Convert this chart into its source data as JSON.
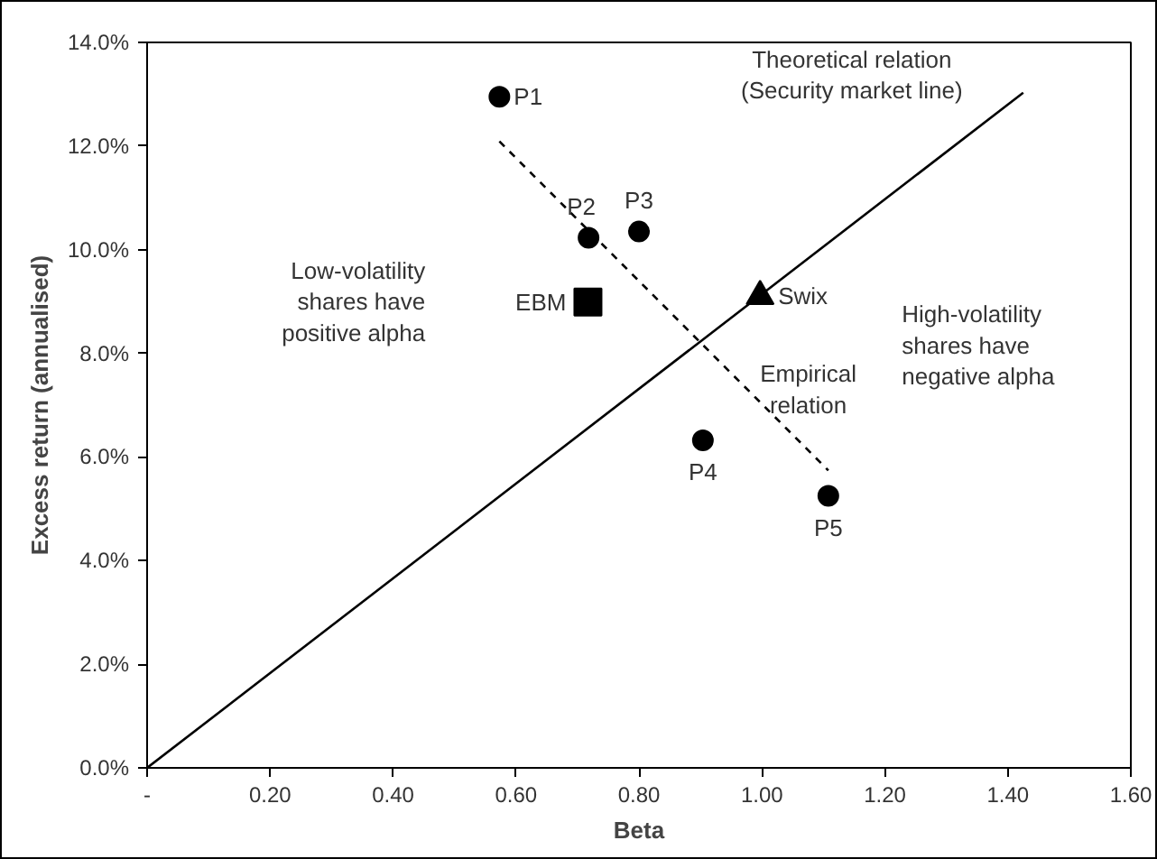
{
  "chart_data": {
    "type": "scatter",
    "xlabel": "Beta",
    "ylabel": "Excess return (annualised)",
    "xlim": [
      0,
      1.6
    ],
    "ylim": [
      0,
      14
    ],
    "xticks": [
      {
        "value": 0,
        "label": "-"
      },
      {
        "value": 0.2,
        "label": "0.20"
      },
      {
        "value": 0.4,
        "label": "0.40"
      },
      {
        "value": 0.6,
        "label": "0.60"
      },
      {
        "value": 0.8,
        "label": "0.80"
      },
      {
        "value": 1.0,
        "label": "1.00"
      },
      {
        "value": 1.2,
        "label": "1.20"
      },
      {
        "value": 1.4,
        "label": "1.40"
      },
      {
        "value": 1.6,
        "label": "1.60"
      }
    ],
    "yticks": [
      {
        "value": 0,
        "label": "0.0%"
      },
      {
        "value": 2,
        "label": "2.0%"
      },
      {
        "value": 4,
        "label": "4.0%"
      },
      {
        "value": 6,
        "label": "6.0%"
      },
      {
        "value": 8,
        "label": "8.0%"
      },
      {
        "value": 10,
        "label": "10.0%"
      },
      {
        "value": 12,
        "label": "12.0%"
      },
      {
        "value": 14,
        "label": "14.0%"
      }
    ],
    "grid": false,
    "series": [
      {
        "name": "P1",
        "color": "#000000",
        "marker": "circle",
        "x": [
          0.573
        ],
        "values": [
          12.95
        ]
      },
      {
        "name": "P2",
        "color": "#000000",
        "marker": "circle",
        "x": [
          0.718
        ],
        "values": [
          10.23
        ]
      },
      {
        "name": "P3",
        "color": "#000000",
        "marker": "circle",
        "x": [
          0.8
        ],
        "values": [
          10.35
        ]
      },
      {
        "name": "P4",
        "color": "#000000",
        "marker": "circle",
        "x": [
          0.904
        ],
        "values": [
          6.32
        ]
      },
      {
        "name": "P5",
        "color": "#000000",
        "marker": "circle",
        "x": [
          1.108
        ],
        "values": [
          5.25
        ]
      },
      {
        "name": "EBM",
        "color": "#000000",
        "marker": "square",
        "x": [
          0.717
        ],
        "values": [
          8.99
        ]
      },
      {
        "name": "Swix",
        "color": "#000000",
        "marker": "triangle",
        "x": [
          0.997
        ],
        "values": [
          9.1
        ]
      },
      {
        "name": "Theoretical relation\n(Security market line)",
        "type": "line",
        "color": "#000000",
        "line_style": "solid",
        "x": [
          0,
          1.425
        ],
        "values": [
          0,
          13.03
        ]
      },
      {
        "name": "Empirical\nrelation",
        "type": "line",
        "color": "#000000",
        "line_style": "dashed",
        "x": [
          0.573,
          1.108
        ],
        "values": [
          12.09,
          5.74
        ]
      }
    ],
    "annotations": [
      "Low-volatility\nshares have\npositive alpha",
      "High-volatility\nshares have\nnegative alpha"
    ]
  }
}
